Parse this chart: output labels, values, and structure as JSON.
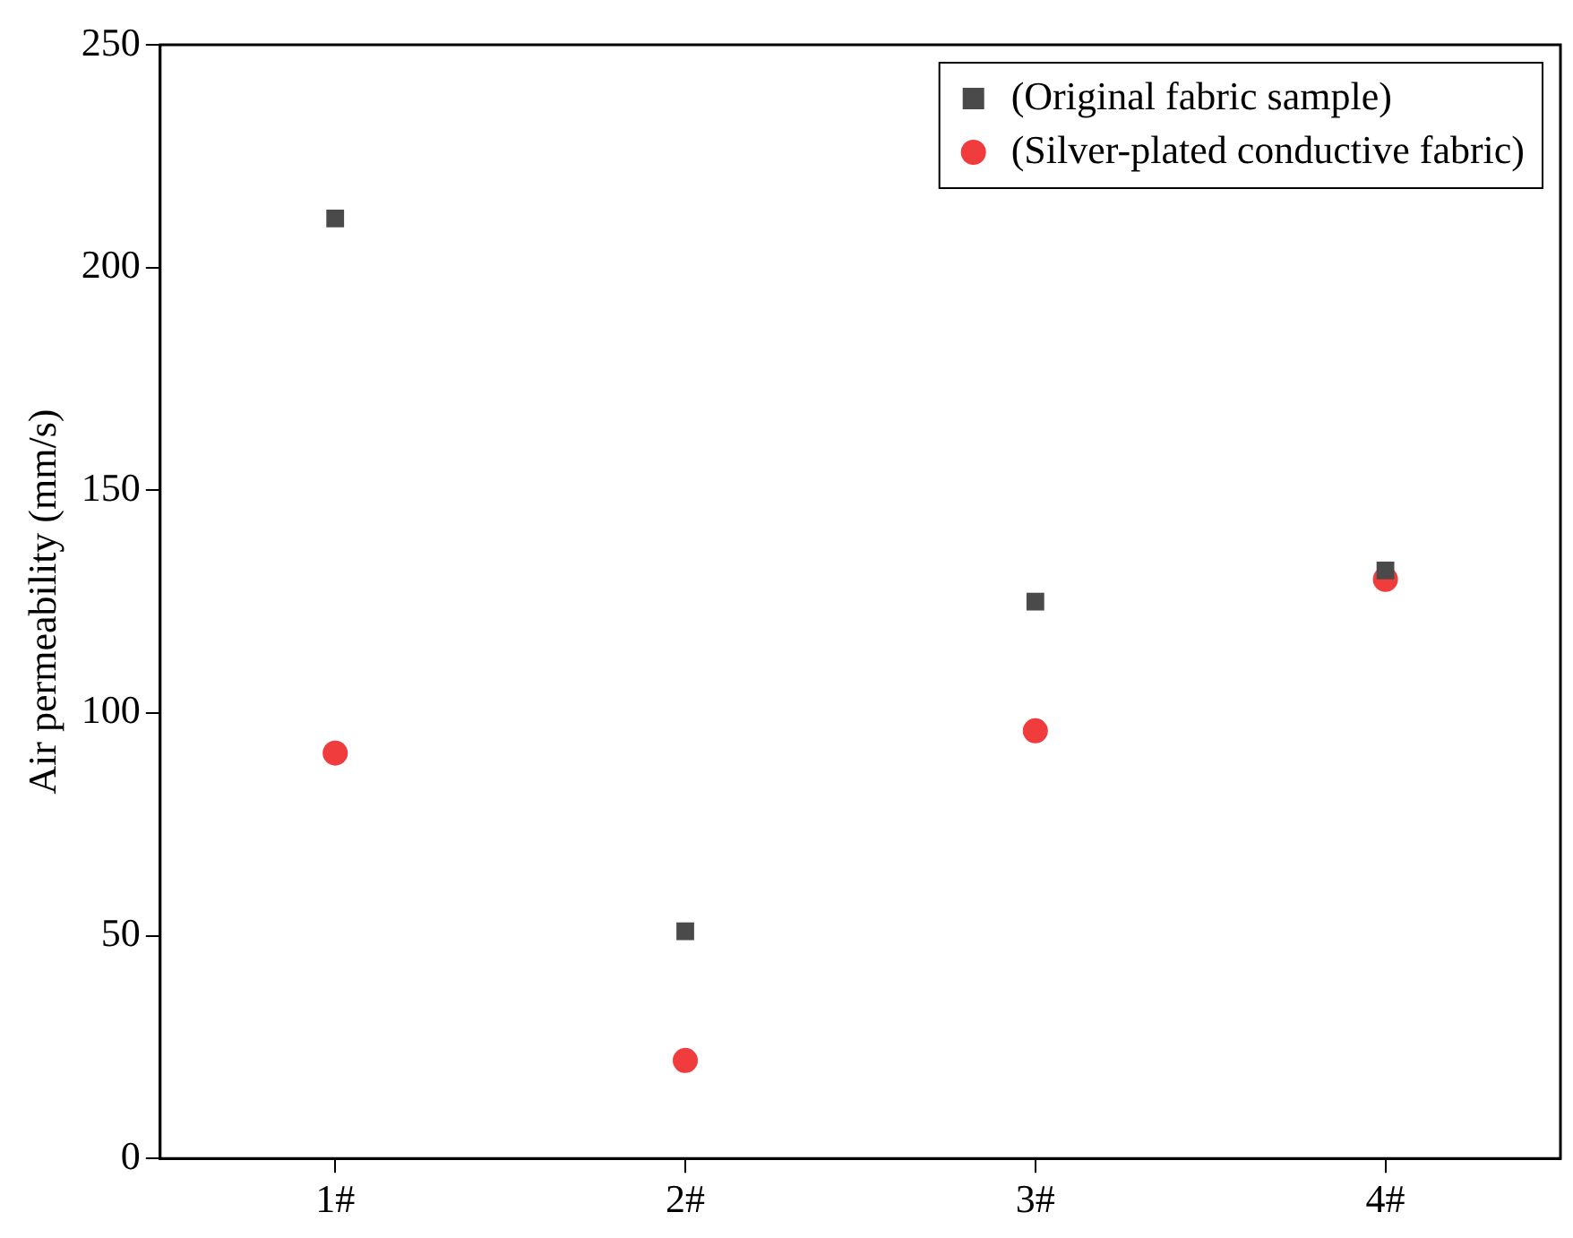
{
  "chart_data": {
    "type": "scatter",
    "ylabel": "Air permeability (mm/s)",
    "categories": [
      "1#",
      "2#",
      "3#",
      "4#"
    ],
    "series": [
      {
        "name": "(Original fabric sample)",
        "color": "#4a4a4a",
        "marker": "square",
        "values": [
          211,
          51,
          125,
          132
        ]
      },
      {
        "name": "(Silver-plated conductive fabric)",
        "color": "#f03c3c",
        "marker": "circle",
        "values": [
          91,
          22,
          96,
          130
        ]
      }
    ],
    "ylim": [
      0,
      250
    ],
    "yticks": [
      0,
      50,
      100,
      150,
      200,
      250
    ],
    "grid": false,
    "legend": "top right"
  }
}
